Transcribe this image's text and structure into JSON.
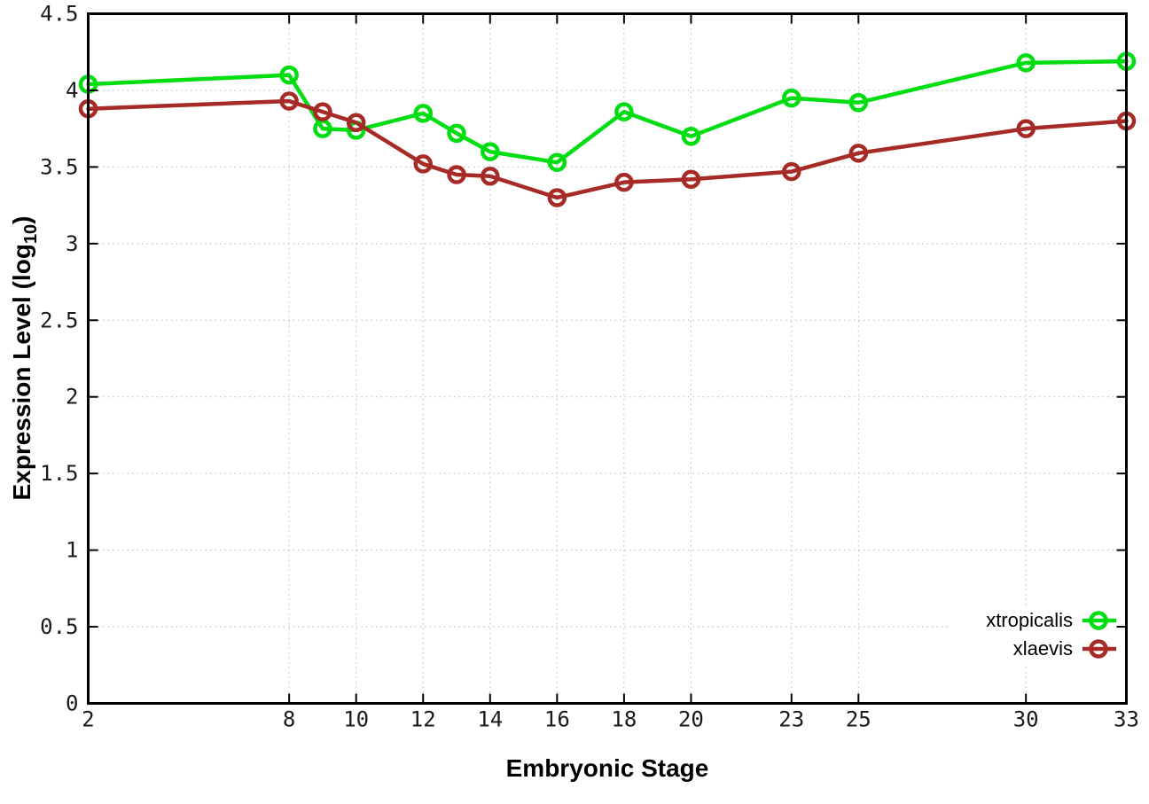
{
  "chart_data": {
    "type": "line",
    "title": "",
    "xlabel": "Embryonic Stage",
    "ylabel": "Expression Level (log10)",
    "ylabel_rich": {
      "pre": "Expression Level (log",
      "sub": "10",
      "post": ")"
    },
    "xlim": [
      2,
      33
    ],
    "ylim": [
      0,
      4.5
    ],
    "x_ticks": [
      2,
      8,
      10,
      12,
      14,
      16,
      18,
      20,
      23,
      25,
      30,
      33
    ],
    "x_tick_labels": [
      "2",
      "8",
      "10",
      "12",
      "14",
      "16",
      "18",
      "20",
      "23",
      "25",
      "30",
      "33"
    ],
    "y_ticks": [
      0,
      0.5,
      1,
      1.5,
      2,
      2.5,
      3,
      3.5,
      4,
      4.5
    ],
    "y_tick_labels": [
      "0",
      "0.5",
      "1",
      "1.5",
      "2",
      "2.5",
      "3",
      "3.5",
      "4",
      "4.5"
    ],
    "grid": true,
    "legend_position": "bottom-right",
    "categories": [
      2,
      8,
      9,
      10,
      12,
      13,
      14,
      16,
      18,
      20,
      23,
      25,
      30,
      33
    ],
    "series": [
      {
        "name": "xtropicalis",
        "color": "#00dd11",
        "marker": "open-circle",
        "values": [
          4.04,
          4.1,
          3.75,
          3.74,
          3.85,
          3.72,
          3.6,
          3.53,
          3.86,
          3.7,
          3.95,
          3.92,
          4.18,
          4.19
        ]
      },
      {
        "name": "xlaevis",
        "color": "#a62b26",
        "marker": "open-circle",
        "values": [
          3.88,
          3.93,
          3.86,
          3.79,
          3.52,
          3.45,
          3.44,
          3.3,
          3.4,
          3.42,
          3.47,
          3.59,
          3.75,
          3.8
        ]
      }
    ],
    "colors": {
      "grid": "#b5b5b5",
      "axis": "#000000",
      "background": "#ffffff"
    }
  }
}
